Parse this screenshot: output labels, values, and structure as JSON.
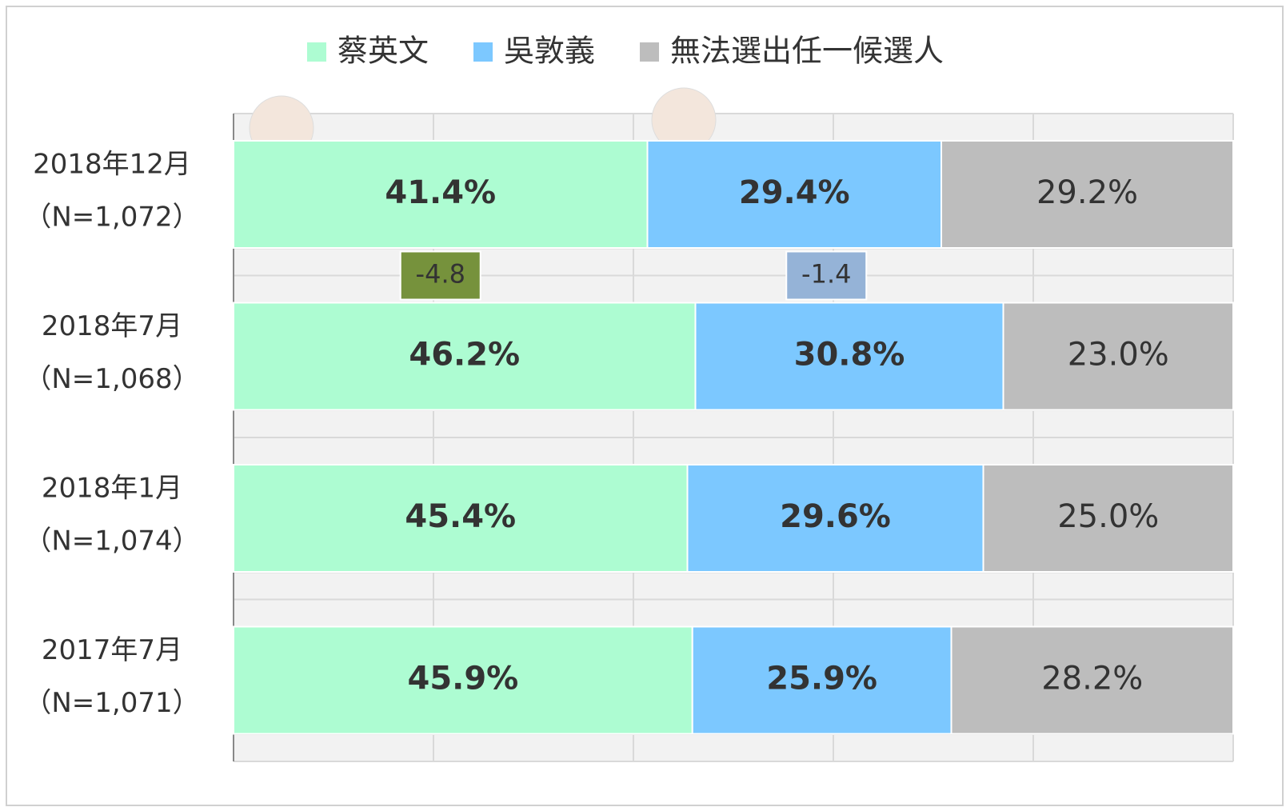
{
  "chart_data": {
    "type": "stacked_barh",
    "categories": [
      "2018年12月",
      "2018年7月",
      "2018年1月",
      "2017年7月"
    ],
    "category_notes": [
      "（N=1,072）",
      "（N=1,068）",
      "（N=1,074）",
      "（N=1,071）"
    ],
    "series": [
      {
        "name": "蔡英文",
        "color": "#adfcd2",
        "label_color": "#4f6a1f",
        "values": [
          41.4,
          46.2,
          45.4,
          45.9
        ],
        "value_labels": [
          "41.4%",
          "46.2%",
          "45.4%",
          "45.9%"
        ]
      },
      {
        "name": "吳敦義",
        "color": "#7cc8ff",
        "label_color": "#1e4f6e",
        "values": [
          29.4,
          30.8,
          29.6,
          25.9
        ],
        "value_labels": [
          "29.4%",
          "30.8%",
          "29.6%",
          "25.9%"
        ]
      },
      {
        "name": "無法選出任一候選人",
        "color": "#bdbdbd",
        "label_color": "#444444",
        "values": [
          29.2,
          23.0,
          25.0,
          28.2
        ],
        "value_labels": [
          "29.2%",
          "23.0%",
          "25.0%",
          "28.2%"
        ]
      }
    ],
    "annotations": [
      {
        "value": -4.8,
        "color": "#76923c"
      },
      {
        "value": -1.4,
        "color": "#95b3d7"
      }
    ],
    "xlim": [
      0,
      100
    ],
    "xticks": [
      0,
      20,
      40,
      60,
      80,
      100
    ],
    "grid": true,
    "legend": "top"
  }
}
